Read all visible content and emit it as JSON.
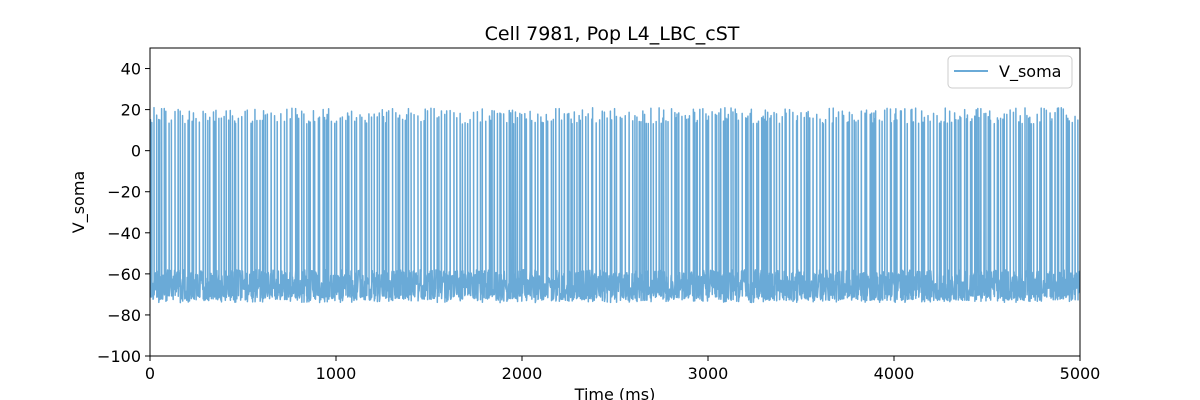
{
  "chart_data": {
    "type": "line",
    "title": "Cell 7981, Pop L4_LBC_cST",
    "xlabel": "Time (ms)",
    "ylabel": "V_soma",
    "xlim": [
      0,
      5000
    ],
    "ylim": [
      -100,
      50
    ],
    "xticks": [
      0,
      1000,
      2000,
      3000,
      4000,
      5000
    ],
    "yticks": [
      -100,
      -80,
      -60,
      -40,
      -20,
      0,
      20,
      40
    ],
    "grid": false,
    "legend_position": "top-right",
    "series": [
      {
        "name": "V_soma",
        "color": "#6aaad7",
        "resting_range": [
          -73,
          -58
        ],
        "spike_peak_range": [
          13,
          21
        ],
        "spike_count_estimate": 470,
        "spike_times_ms_sample": [
          5,
          40,
          95,
          130,
          175,
          225,
          260,
          300,
          340,
          390,
          430,
          470,
          520,
          560,
          600,
          640,
          690,
          730,
          780,
          820,
          870,
          910,
          960,
          1000
        ]
      }
    ]
  }
}
